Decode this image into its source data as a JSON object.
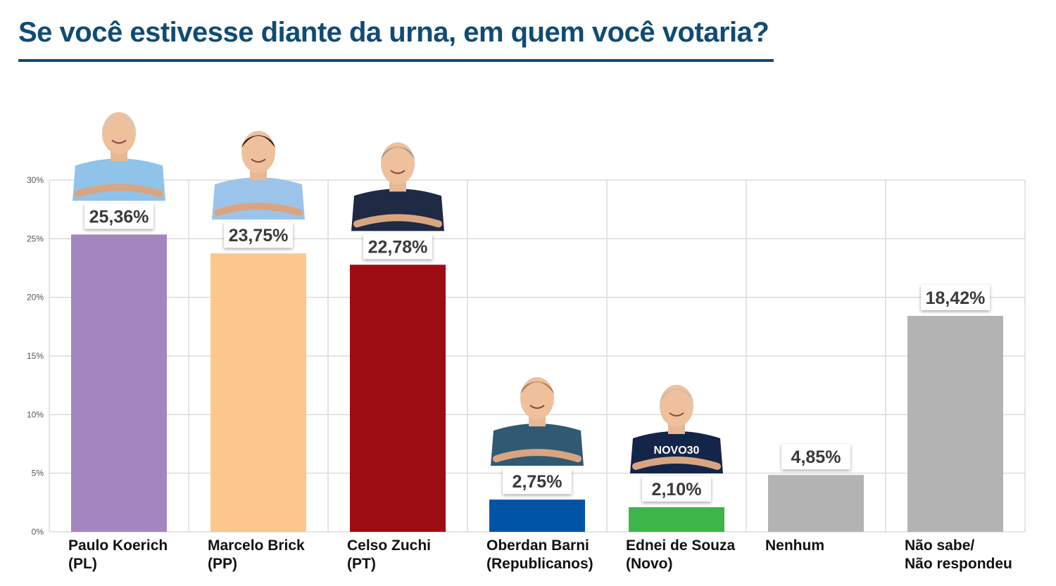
{
  "title": "Se você estivesse diante da urna, em quem você votaria?",
  "chart_data": {
    "type": "bar",
    "ylim": [
      0,
      30
    ],
    "yticks": [
      "0%",
      "5%",
      "10%",
      "15%",
      "20%",
      "25%",
      "30%"
    ],
    "grid": true,
    "categories": [
      {
        "line1": "Paulo Koerich",
        "line2": "(PL)",
        "value": 25.36,
        "label": "25,36%",
        "color": "#a386c0",
        "photo": "portrait-light-blue-shirt-glasses"
      },
      {
        "line1": "Marcelo Brick",
        "line2": "(PP)",
        "value": 23.75,
        "label": "23,75%",
        "color": "#fcc78c",
        "photo": "portrait-light-blue-shirt"
      },
      {
        "line1": "Celso Zuchi",
        "line2": "(PT)",
        "value": 22.78,
        "label": "22,78%",
        "color": "#9d0c12",
        "photo": "portrait-navy-suit"
      },
      {
        "line1": "Oberdan Barni",
        "line2": "(Republicanos)",
        "value": 2.75,
        "label": "2,75%",
        "color": "#0054a6",
        "photo": "portrait-teal-polo"
      },
      {
        "line1": "Ednei de Souza",
        "line2": "(Novo)",
        "value": 2.1,
        "label": "2,10%",
        "color": "#3db54a",
        "photo": "portrait-navy-tshirt-novo30",
        "shirt_text": "NOVO30"
      },
      {
        "line1": "Nenhum",
        "line2": "",
        "value": 4.85,
        "label": "4,85%",
        "color": "#b3b3b3"
      },
      {
        "line1": "Não sabe/",
        "line2": "Não respondeu",
        "value": 18.42,
        "label": "18,42%",
        "color": "#b3b3b3"
      }
    ]
  }
}
